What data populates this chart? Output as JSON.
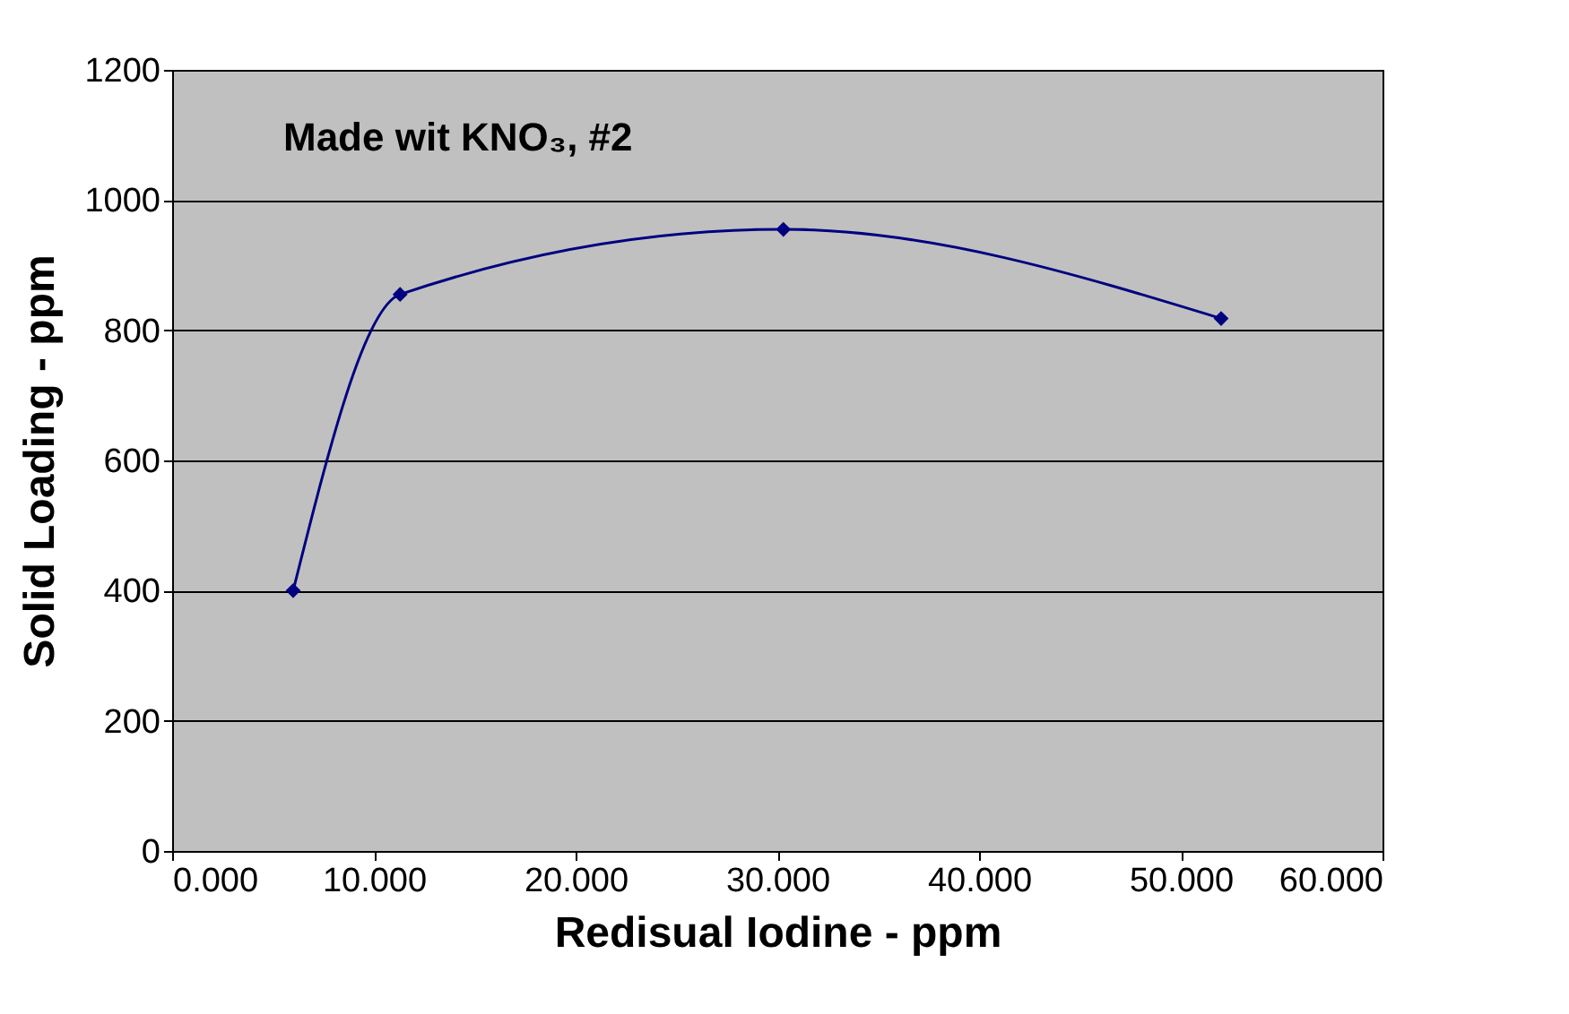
{
  "chart_data": {
    "type": "line",
    "title": "Made wit KNO₃, #2",
    "xlabel": "Redisual Iodine - ppm",
    "ylabel": "Solid Loading - ppm",
    "x": [
      6.0,
      11.3,
      30.3,
      52.0
    ],
    "series": [
      {
        "color": "#000080",
        "values": [
          400,
          855,
          955,
          818
        ]
      }
    ],
    "xlim": [
      0,
      60
    ],
    "xticks": [
      {
        "value": 0,
        "label": "0.000"
      },
      {
        "value": 10,
        "label": "10.000"
      },
      {
        "value": 20,
        "label": "20.000"
      },
      {
        "value": 30,
        "label": "30.000"
      },
      {
        "value": 40,
        "label": "40.000"
      },
      {
        "value": 50,
        "label": "50.000"
      },
      {
        "value": 60,
        "label": "60.000"
      }
    ],
    "ylim": [
      0,
      1200
    ],
    "yticks": [
      0,
      200,
      400,
      600,
      800,
      1000,
      1200
    ],
    "grid": "y",
    "marker": "diamond",
    "line_style": "solid"
  }
}
